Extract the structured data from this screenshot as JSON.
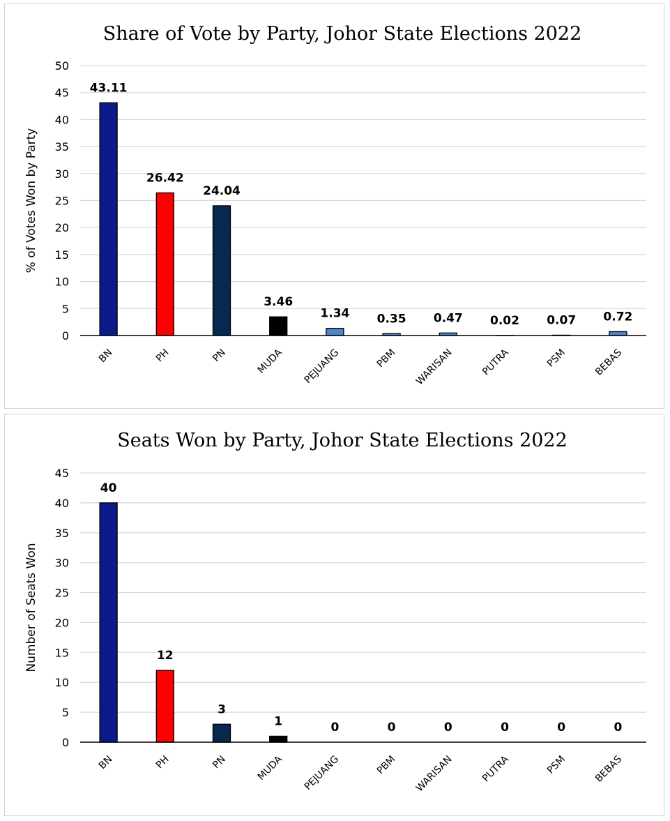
{
  "chart_data": [
    {
      "type": "bar",
      "title": "Share of Vote by Party, Johor State Elections 2022",
      "xlabel": "",
      "ylabel": "% of Votes Won by Party",
      "categories": [
        "BN",
        "PH",
        "PN",
        "MUDA",
        "PEJUANG",
        "PBM",
        "WARISAN",
        "PUTRA",
        "PSM",
        "BEBAS"
      ],
      "values": [
        43.11,
        26.42,
        24.04,
        3.46,
        1.34,
        0.35,
        0.47,
        0.02,
        0.07,
        0.72
      ],
      "value_labels": [
        "43.11",
        "26.42",
        "24.04",
        "3.46",
        "1.34",
        "0.35",
        "0.47",
        "0.02",
        "0.07",
        "0.72"
      ],
      "bar_colors": [
        "#0a1a8a",
        "#ff0000",
        "#06294f",
        "#000000",
        "#4a86c8",
        "#4a86c8",
        "#4a86c8",
        "#4a86c8",
        "#4a86c8",
        "#4a86c8"
      ],
      "ylim": [
        0,
        50
      ],
      "yticks": [
        0,
        5,
        10,
        15,
        20,
        25,
        30,
        35,
        40,
        45,
        50
      ],
      "grid": true
    },
    {
      "type": "bar",
      "title": "Seats Won by Party, Johor State Elections 2022",
      "xlabel": "",
      "ylabel": "Number of Seats Won",
      "categories": [
        "BN",
        "PH",
        "PN",
        "MUDA",
        "PEJUANG",
        "PBM",
        "WARISAN",
        "PUTRA",
        "PSM",
        "BEBAS"
      ],
      "values": [
        40,
        12,
        3,
        1,
        0,
        0,
        0,
        0,
        0,
        0
      ],
      "value_labels": [
        "40",
        "12",
        "3",
        "1",
        "0",
        "0",
        "0",
        "0",
        "0",
        "0"
      ],
      "bar_colors": [
        "#0a1a8a",
        "#ff0000",
        "#06294f",
        "#000000",
        "#4a86c8",
        "#4a86c8",
        "#4a86c8",
        "#4a86c8",
        "#4a86c8",
        "#4a86c8"
      ],
      "ylim": [
        0,
        45
      ],
      "yticks": [
        0,
        5,
        10,
        15,
        20,
        25,
        30,
        35,
        40,
        45
      ],
      "grid": true
    }
  ]
}
